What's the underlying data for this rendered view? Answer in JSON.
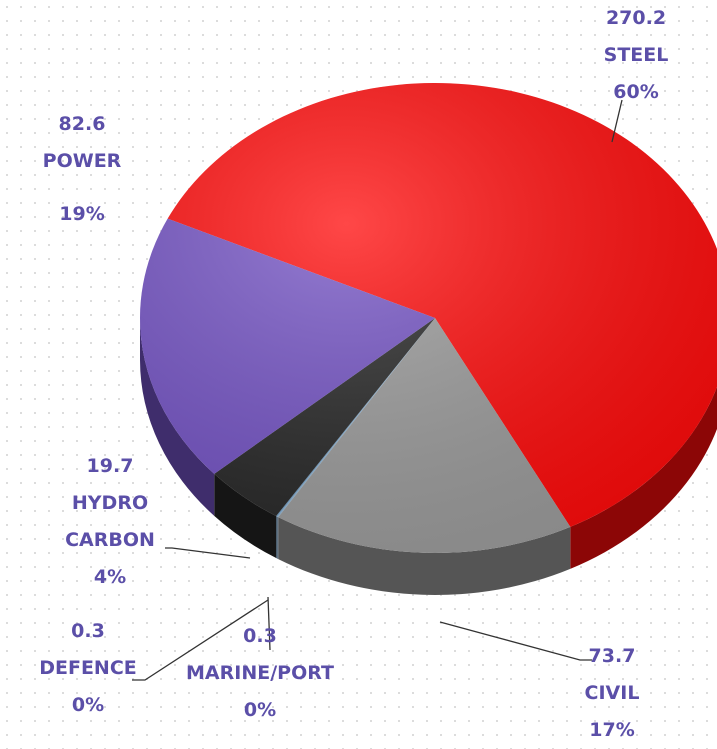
{
  "chart_data": {
    "type": "pie",
    "categories": [
      "STEEL",
      "CIVIL",
      "MARINE/PORT",
      "DEFENCE",
      "HYDRO CARBON",
      "POWER"
    ],
    "values": [
      270.2,
      73.7,
      0.3,
      0.3,
      19.7,
      82.6
    ],
    "percent_labels": [
      "60%",
      "17%",
      "0%",
      "0%",
      "4%",
      "19%"
    ],
    "colors": [
      "#ff0a0a",
      "#9b9b9b",
      "#8fb3d1",
      "#6d9cc6",
      "#262626",
      "#7352c4"
    ]
  }
}
